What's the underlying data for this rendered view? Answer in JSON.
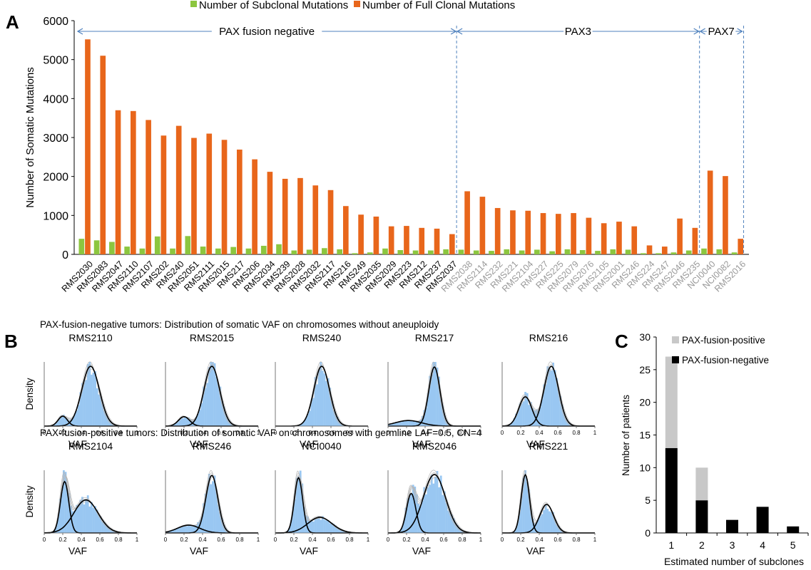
{
  "chart_data": [
    {
      "panel": "A",
      "type": "bar",
      "ylabel": "Number of Somatic Mutations",
      "ylim": [
        0,
        6000
      ],
      "yticks": [
        "0",
        "1000",
        "2000",
        "3000",
        "4000",
        "5000",
        "6000"
      ],
      "legend_position": "top",
      "series": [
        {
          "name": "Number of Subclonal Mutations",
          "color": "#8cc63f",
          "values": [
            400,
            360,
            320,
            200,
            150,
            460,
            150,
            470,
            200,
            150,
            190,
            150,
            220,
            260,
            100,
            120,
            160,
            130,
            30,
            50,
            150,
            110,
            100,
            100,
            130,
            120,
            100,
            90,
            130,
            100,
            120,
            80,
            130,
            110,
            90,
            130,
            120,
            30,
            30,
            50,
            100,
            150,
            130,
            50
          ]
        },
        {
          "name": "Number of Full Clonal Mutations",
          "color": "#e8661b",
          "values": [
            5520,
            5100,
            3700,
            3680,
            3450,
            3050,
            3300,
            2990,
            3100,
            2940,
            2690,
            2440,
            2120,
            1940,
            1960,
            1770,
            1650,
            1240,
            1020,
            970,
            720,
            730,
            680,
            660,
            520,
            1620,
            1480,
            1190,
            1130,
            1120,
            1060,
            1040,
            1060,
            940,
            800,
            840,
            720,
            230,
            200,
            920,
            680,
            2150,
            2010,
            400
          ]
        }
      ],
      "categories": [
        {
          "name": "RMS2030",
          "group": 0
        },
        {
          "name": "RMS2083",
          "group": 0
        },
        {
          "name": "RMS2047",
          "group": 0
        },
        {
          "name": "RMS2110",
          "group": 0
        },
        {
          "name": "RMS2107",
          "group": 0
        },
        {
          "name": "RMS202",
          "group": 0
        },
        {
          "name": "RMS240",
          "group": 0
        },
        {
          "name": "RMS2051",
          "group": 0
        },
        {
          "name": "RMS2111",
          "group": 0
        },
        {
          "name": "RMS2015",
          "group": 0
        },
        {
          "name": "RMS217",
          "group": 0
        },
        {
          "name": "RMS206",
          "group": 0
        },
        {
          "name": "RMS2034",
          "group": 0
        },
        {
          "name": "RMS239",
          "group": 0
        },
        {
          "name": "RMS2028",
          "group": 0
        },
        {
          "name": "RMS2032",
          "group": 0
        },
        {
          "name": "RMS2117",
          "group": 0
        },
        {
          "name": "RMS216",
          "group": 0
        },
        {
          "name": "RMS249",
          "group": 0
        },
        {
          "name": "RMS2035",
          "group": 0
        },
        {
          "name": "RMS2029",
          "group": 0
        },
        {
          "name": "RMS223",
          "group": 0
        },
        {
          "name": "RMS212",
          "group": 0
        },
        {
          "name": "RMS237",
          "group": 0
        },
        {
          "name": "RMS2037",
          "group": 0
        },
        {
          "name": "RMS2038",
          "group": 1
        },
        {
          "name": "RMS2114",
          "group": 1
        },
        {
          "name": "RMS232",
          "group": 1
        },
        {
          "name": "RMS221",
          "group": 1
        },
        {
          "name": "RMS2104",
          "group": 1
        },
        {
          "name": "RMS227",
          "group": 1
        },
        {
          "name": "RMS225",
          "group": 1
        },
        {
          "name": "RMS2079",
          "group": 1
        },
        {
          "name": "RMS2076",
          "group": 1
        },
        {
          "name": "RMS2105",
          "group": 1
        },
        {
          "name": "RMS2001",
          "group": 1
        },
        {
          "name": "RMS246",
          "group": 1
        },
        {
          "name": "RMS224",
          "group": 1
        },
        {
          "name": "RMS247",
          "group": 1
        },
        {
          "name": "RMS2046",
          "group": 1
        },
        {
          "name": "RMS235",
          "group": 1
        },
        {
          "name": "NCI0040",
          "group": 2
        },
        {
          "name": "NCI0082",
          "group": 2
        },
        {
          "name": "RMS2016",
          "group": 2
        }
      ],
      "groups": [
        {
          "label": "PAX fusion negative",
          "label_color": "#000000"
        },
        {
          "label": "PAX3",
          "label_color": "#000000"
        },
        {
          "label": "PAX7",
          "label_color": "#000000"
        }
      ],
      "group_tick_colors": [
        "#000000",
        "#999999",
        "#999999"
      ],
      "group_arrow_color": "#4f81bd"
    },
    {
      "panel": "B",
      "type": "histogram",
      "xlabel": "VAF",
      "ylabel": "Density",
      "xticks": [
        "0",
        "0.2",
        "0.4",
        "0.6",
        "0.8",
        "1"
      ],
      "bar_color": "#99c7f2",
      "rows": [
        {
          "caption": "PAX-fusion-negative tumors:  Distribution of somatic VAF on chromosomes without aneuploidy",
          "plots": [
            {
              "title": "RMS2110",
              "components": [
                {
                  "mu": 0.2,
                  "sd": 0.05,
                  "w": 0.08
                },
                {
                  "mu": 0.5,
                  "sd": 0.095,
                  "w": 0.92
                }
              ]
            },
            {
              "title": "RMS2015",
              "components": [
                {
                  "mu": 0.2,
                  "sd": 0.06,
                  "w": 0.1
                },
                {
                  "mu": 0.5,
                  "sd": 0.085,
                  "w": 0.9
                }
              ]
            },
            {
              "title": "RMS240",
              "components": [
                {
                  "mu": 0.5,
                  "sd": 0.085,
                  "w": 1.0
                }
              ]
            },
            {
              "title": "RMS217",
              "components": [
                {
                  "mu": 0.22,
                  "sd": 0.14,
                  "w": 0.18
                },
                {
                  "mu": 0.5,
                  "sd": 0.06,
                  "w": 0.82
                }
              ]
            },
            {
              "title": "RMS216",
              "components": [
                {
                  "mu": 0.25,
                  "sd": 0.07,
                  "w": 0.3
                },
                {
                  "mu": 0.53,
                  "sd": 0.08,
                  "w": 0.7
                }
              ]
            }
          ]
        },
        {
          "caption": "PAX-fusion-positive tumors: Distribution of somatic VAF on chromosomes with germline LAF=0.5, CN=4",
          "plots": [
            {
              "title": "RMS2104",
              "components": [
                {
                  "mu": 0.22,
                  "sd": 0.045,
                  "w": 0.35
                },
                {
                  "mu": 0.45,
                  "sd": 0.13,
                  "w": 0.65
                }
              ]
            },
            {
              "title": "RMS246",
              "components": [
                {
                  "mu": 0.25,
                  "sd": 0.12,
                  "w": 0.2
                },
                {
                  "mu": 0.5,
                  "sd": 0.065,
                  "w": 0.8
                }
              ]
            },
            {
              "title": "NCI0040",
              "components": [
                {
                  "mu": 0.25,
                  "sd": 0.045,
                  "w": 0.55
                },
                {
                  "mu": 0.48,
                  "sd": 0.13,
                  "w": 0.45
                }
              ]
            },
            {
              "title": "RMS2046",
              "components": [
                {
                  "mu": 0.25,
                  "sd": 0.05,
                  "w": 0.22
                },
                {
                  "mu": 0.5,
                  "sd": 0.12,
                  "w": 0.78
                }
              ]
            },
            {
              "title": "RMS221",
              "components": [
                {
                  "mu": 0.25,
                  "sd": 0.045,
                  "w": 0.55
                },
                {
                  "mu": 0.48,
                  "sd": 0.075,
                  "w": 0.45
                }
              ]
            }
          ]
        }
      ]
    },
    {
      "panel": "C",
      "type": "bar",
      "stacked": true,
      "xlabel": "Estimated number of subclones",
      "ylabel": "Number of patients",
      "ylim": [
        0,
        30
      ],
      "yticks": [
        "0",
        "5",
        "10",
        "15",
        "20",
        "25",
        "30"
      ],
      "categories": [
        "1",
        "2",
        "3",
        "4",
        "5"
      ],
      "legend_position": "top-right",
      "series": [
        {
          "name": "PAX-fusion-negative",
          "color": "#000000",
          "values": [
            13,
            5,
            2,
            4,
            1
          ]
        },
        {
          "name": "PAX-fusion-positive",
          "color": "#c8c8c8",
          "values": [
            14,
            5,
            0,
            0,
            0
          ]
        }
      ]
    }
  ],
  "panel_labels": [
    "A",
    "B",
    "C"
  ]
}
